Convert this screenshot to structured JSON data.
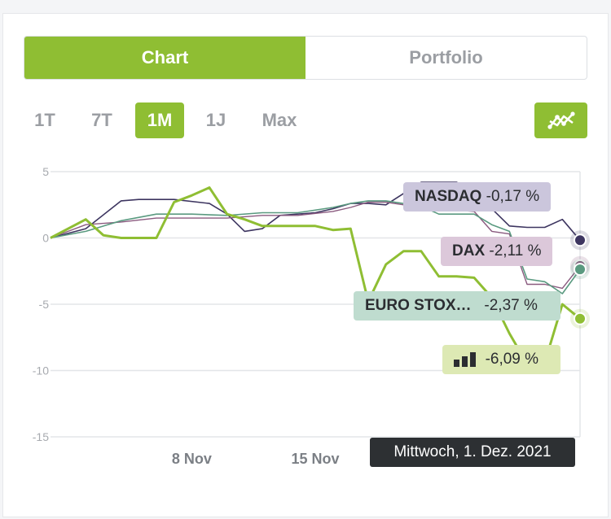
{
  "tabs": {
    "chart": "Chart",
    "portfolio": "Portfolio"
  },
  "ranges": [
    "1T",
    "7T",
    "1M",
    "1J",
    "Max"
  ],
  "active_range": "1M",
  "chart_toggle_icon": "line-chart-icon",
  "colors": {
    "accent": "#8fbe33",
    "nasdaq": "#3d3560",
    "dax": "#8a5a7f",
    "euro": "#5a9a80",
    "portfolio": "#8fbe33"
  },
  "tooltip": "Mittwoch, 1. Dez. 2021",
  "labels": [
    {
      "name": "NASDAQ",
      "value": "-0,17 %"
    },
    {
      "name": "DAX",
      "value": "-2,11 %"
    },
    {
      "name": "EURO STOX…",
      "value": "-2,37 %"
    },
    {
      "name": "",
      "value": "-6,09 %",
      "icon": "bar-chart-icon"
    }
  ],
  "chart_data": {
    "type": "line",
    "ylim": [
      -15,
      5
    ],
    "yticks": [
      "5",
      "0",
      "-5",
      "-10",
      "-15"
    ],
    "ytick_values": [
      5,
      0,
      -5,
      -10,
      -15
    ],
    "xticks": [
      {
        "label": "8 Nov",
        "x": 8
      },
      {
        "label": "15 Nov",
        "x": 15
      }
    ],
    "xlim": [
      0,
      30
    ],
    "series": [
      {
        "name": "NASDAQ",
        "color": "#3d3560",
        "x": [
          0,
          2,
          4,
          5,
          7,
          9,
          10,
          11,
          12,
          13,
          15,
          16,
          17,
          18,
          19,
          21,
          22,
          23,
          24,
          25,
          26,
          27,
          28,
          29,
          30
        ],
        "y": [
          0,
          0.7,
          2.8,
          2.9,
          2.9,
          2.6,
          1.8,
          0.5,
          0.7,
          1.7,
          1.9,
          2.2,
          2.6,
          2.6,
          2.5,
          4.2,
          4.2,
          4.2,
          3.5,
          2.2,
          0.9,
          0.8,
          0.8,
          1.4,
          -0.17
        ]
      },
      {
        "name": "DAX",
        "color": "#8a5a7f",
        "x": [
          0,
          2,
          4,
          6,
          8,
          10,
          12,
          14,
          16,
          17,
          18,
          19,
          21,
          22,
          24,
          25,
          26,
          27,
          28,
          29,
          30
        ],
        "y": [
          0,
          1,
          1.2,
          1.5,
          1.5,
          1.5,
          1.7,
          1.7,
          2,
          2.3,
          2.7,
          2.7,
          2.3,
          2.2,
          2,
          0.5,
          0.3,
          -3.5,
          -3.5,
          -3.8,
          -2.11
        ]
      },
      {
        "name": "EURO STOX…",
        "color": "#5a9a80",
        "x": [
          0,
          2,
          4,
          6,
          8,
          10,
          12,
          14,
          16,
          17,
          18,
          19,
          21,
          22,
          24,
          25,
          26,
          27,
          28,
          29,
          30
        ],
        "y": [
          0,
          0.5,
          1.3,
          1.8,
          1.8,
          1.7,
          1.9,
          1.9,
          2.3,
          2.6,
          2.8,
          2.8,
          2.4,
          1.8,
          1.8,
          1,
          0.5,
          -3.1,
          -3.3,
          -4.2,
          -2.37
        ]
      },
      {
        "name": "",
        "color": "#8fbe33",
        "x": [
          0,
          2,
          3,
          4,
          6,
          7,
          8,
          9,
          10,
          11,
          12,
          13,
          14,
          15,
          16,
          17,
          18,
          19,
          20,
          21,
          22,
          23,
          24,
          25,
          26,
          27,
          28,
          29,
          30
        ],
        "y": [
          0,
          1.4,
          0.2,
          0,
          0,
          2.7,
          3.2,
          3.8,
          1.8,
          1.4,
          0.9,
          0.9,
          0.9,
          0.9,
          0.6,
          0.7,
          -4.8,
          -2,
          -1,
          -1,
          -2.9,
          -2.9,
          -3,
          -4.5,
          -7.2,
          -9.5,
          -9.4,
          -5,
          -6.09
        ]
      }
    ]
  }
}
